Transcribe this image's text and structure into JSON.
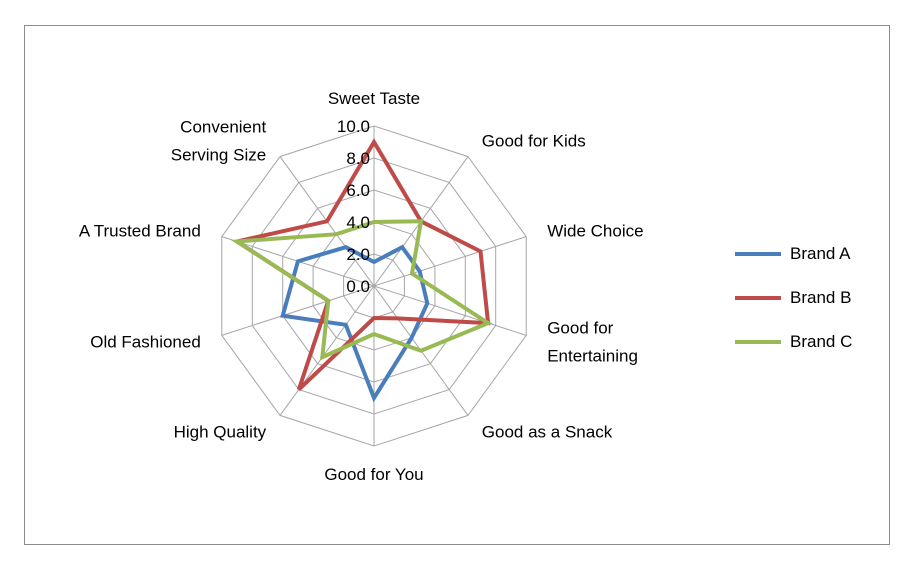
{
  "chart_data": {
    "type": "radar",
    "axes": [
      "Sweet Taste",
      "Good for  Kids",
      "Wide Choice",
      "Good for|Entertaining",
      "Good as a Snack",
      "Good for You",
      "High Quality",
      "Old Fashioned",
      "A Trusted Brand",
      "Convenient|Serving Size"
    ],
    "rlim": [
      0,
      10
    ],
    "ticks": [
      "0.0",
      "2.0",
      "4.0",
      "6.0",
      "8.0",
      "10.0"
    ],
    "grid": true,
    "legend_position": "right",
    "series": [
      {
        "name": "Brand A",
        "color": "#4a7ebb",
        "values": [
          1.5,
          3.0,
          3.0,
          3.5,
          4.0,
          7.0,
          3.0,
          6.0,
          5.0,
          3.0
        ]
      },
      {
        "name": "Brand B",
        "color": "#be4b48",
        "values": [
          9.0,
          5.0,
          7.0,
          7.5,
          2.5,
          2.0,
          8.0,
          3.0,
          9.0,
          5.0
        ]
      },
      {
        "name": "Brand C",
        "color": "#98b954",
        "values": [
          4.0,
          5.0,
          2.5,
          7.5,
          5.0,
          3.0,
          5.5,
          3.0,
          9.0,
          4.0
        ]
      }
    ]
  }
}
